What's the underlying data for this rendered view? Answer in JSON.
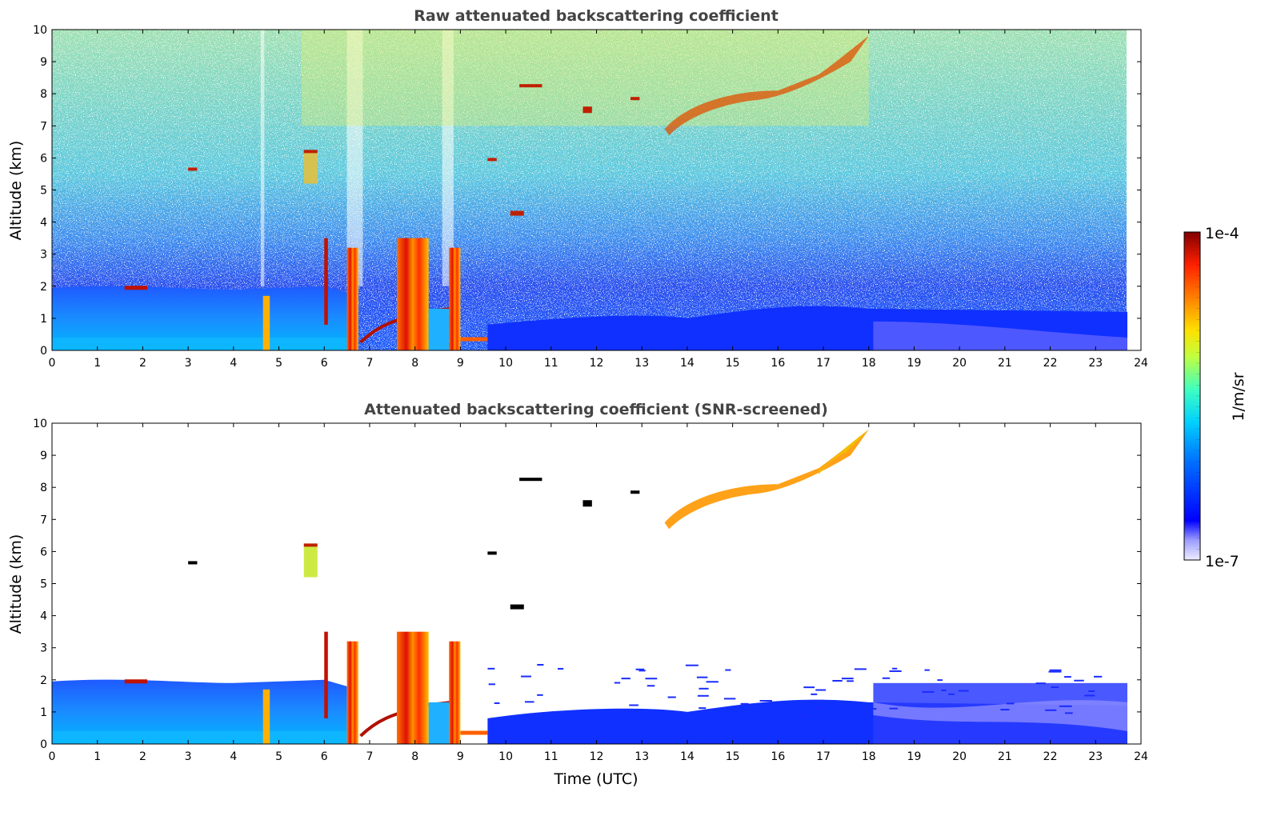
{
  "chart_data": [
    {
      "type": "heatmap",
      "title": "Raw attenuated backscattering coefficient",
      "xlabel": "",
      "ylabel": "Altitude (km)",
      "xlim": [
        0,
        24
      ],
      "ylim": [
        0,
        10
      ],
      "xticks": [
        "0",
        "1",
        "2",
        "3",
        "4",
        "5",
        "6",
        "7",
        "8",
        "9",
        "10",
        "11",
        "12",
        "13",
        "14",
        "15",
        "16",
        "17",
        "18",
        "19",
        "20",
        "21",
        "22",
        "23",
        "24"
      ],
      "yticks": [
        "0",
        "1",
        "2",
        "3",
        "4",
        "5",
        "6",
        "7",
        "8",
        "9",
        "10"
      ],
      "data_end_hour": 23.7,
      "features": [
        {
          "feature": "boundary layer aerosol",
          "x": [
            0,
            9.8
          ],
          "y": [
            0,
            2.0
          ]
        },
        {
          "feature": "boundary layer aerosol",
          "x": [
            9.8,
            23.7
          ],
          "y": [
            0,
            1.0
          ]
        },
        {
          "feature": "thick low cloud / rain",
          "x": [
            6.5,
            9.6
          ],
          "y": [
            0,
            3.5
          ]
        },
        {
          "feature": "high cirrus layer",
          "x": [
            13.5,
            18.0
          ],
          "y": [
            7.0,
            9.8
          ]
        },
        {
          "feature": "isolated cloud",
          "x": [
            5.5,
            5.9
          ],
          "y": [
            5.2,
            6.3
          ]
        },
        {
          "feature": "isolated cloud",
          "x": [
            10.1,
            10.4
          ],
          "y": [
            4.2,
            4.35
          ]
        },
        {
          "feature": "isolated cloud",
          "x": [
            11.7,
            11.9
          ],
          "y": [
            7.3,
            7.6
          ]
        },
        {
          "feature": "isolated cloud",
          "x": [
            10.0,
            10.9
          ],
          "y": [
            8.1,
            8.3
          ]
        }
      ]
    },
    {
      "type": "heatmap",
      "title": "Attenuated backscattering coefficient (SNR-screened)",
      "xlabel": "Time (UTC)",
      "ylabel": "Altitude (km)",
      "xlim": [
        0,
        24
      ],
      "ylim": [
        0,
        10
      ],
      "xticks": [
        "0",
        "1",
        "2",
        "3",
        "4",
        "5",
        "6",
        "7",
        "8",
        "9",
        "10",
        "11",
        "12",
        "13",
        "14",
        "15",
        "16",
        "17",
        "18",
        "19",
        "20",
        "21",
        "22",
        "23",
        "24"
      ],
      "yticks": [
        "0",
        "1",
        "2",
        "3",
        "4",
        "5",
        "6",
        "7",
        "8",
        "9",
        "10"
      ],
      "data_end_hour": 23.7,
      "features": [
        {
          "feature": "boundary layer aerosol",
          "x": [
            0,
            9.8
          ],
          "y": [
            0,
            2.0
          ]
        },
        {
          "feature": "boundary layer aerosol",
          "x": [
            9.8,
            23.7
          ],
          "y": [
            0,
            1.8
          ]
        },
        {
          "feature": "thick low cloud / rain",
          "x": [
            6.5,
            9.6
          ],
          "y": [
            0,
            3.5
          ]
        },
        {
          "feature": "high cirrus layer",
          "x": [
            13.5,
            18.0
          ],
          "y": [
            7.0,
            9.8
          ]
        }
      ]
    }
  ],
  "colorbar": {
    "label": "1/m/sr",
    "max_label": "1e-4",
    "min_label": "1e-7",
    "scale": "log",
    "colormap": "jet",
    "colors": [
      "#eeeeff",
      "#b0b0ff",
      "#0000ff",
      "#0080ff",
      "#00d0ff",
      "#40ffc0",
      "#c0ff40",
      "#ffe000",
      "#ff8000",
      "#ff2000",
      "#800000"
    ]
  }
}
